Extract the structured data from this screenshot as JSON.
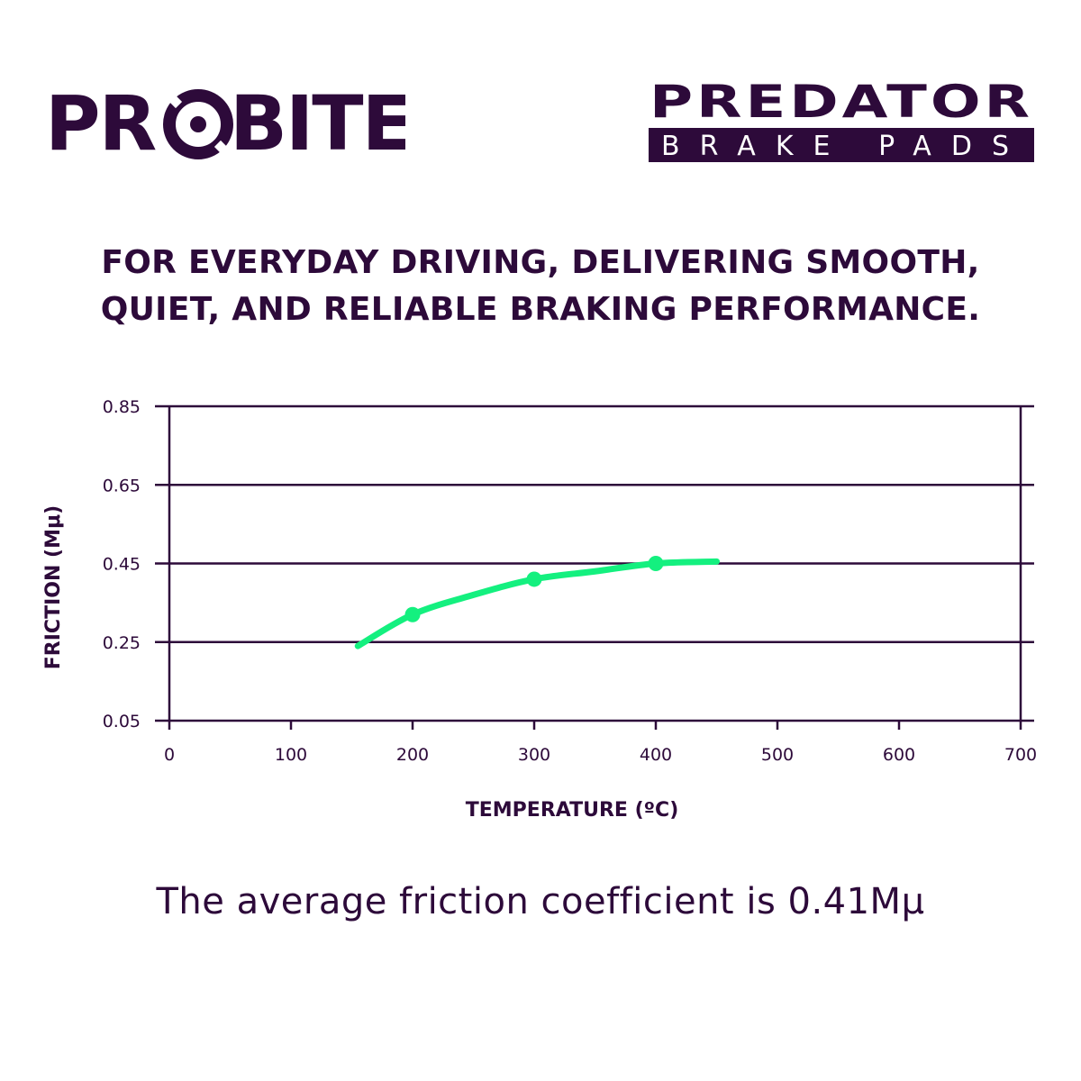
{
  "brand": {
    "probite_text": "PROBITE",
    "predator_text": "PREDATOR",
    "predator_sub": "BRAKE PADS",
    "color_dark": "#2d0a3a",
    "color_accent": "#14f07f"
  },
  "headline": {
    "line1": "FOR EVERYDAY DRIVING, DELIVERING SMOOTH,",
    "line2": "QUIET, AND RELIABLE BRAKING PERFORMANCE."
  },
  "chart_data": {
    "type": "line",
    "title": "",
    "xlabel": "TEMPERATURE (ºC)",
    "ylabel": "FRICTION (Mμ)",
    "xlim": [
      0,
      700
    ],
    "ylim": [
      0.05,
      0.85
    ],
    "xticks": [
      0,
      100,
      200,
      300,
      400,
      500,
      600,
      700
    ],
    "yticks": [
      0.05,
      0.25,
      0.45,
      0.65,
      0.85
    ],
    "ytick_labels": [
      "0.05",
      "0.25",
      "0.45",
      "0.65",
      "0.85"
    ],
    "grid": "horizontal",
    "series": [
      {
        "color": "#14f07f",
        "x": [
          155,
          200,
          250,
          300,
          350,
          400,
          450
        ],
        "y": [
          0.24,
          0.32,
          0.37,
          0.41,
          0.43,
          0.45,
          0.455
        ],
        "markers_x": [
          200,
          300,
          400
        ],
        "markers_y": [
          0.32,
          0.41,
          0.45
        ]
      }
    ]
  },
  "footer": {
    "text": "The average friction coefficient is 0.41Mμ"
  }
}
